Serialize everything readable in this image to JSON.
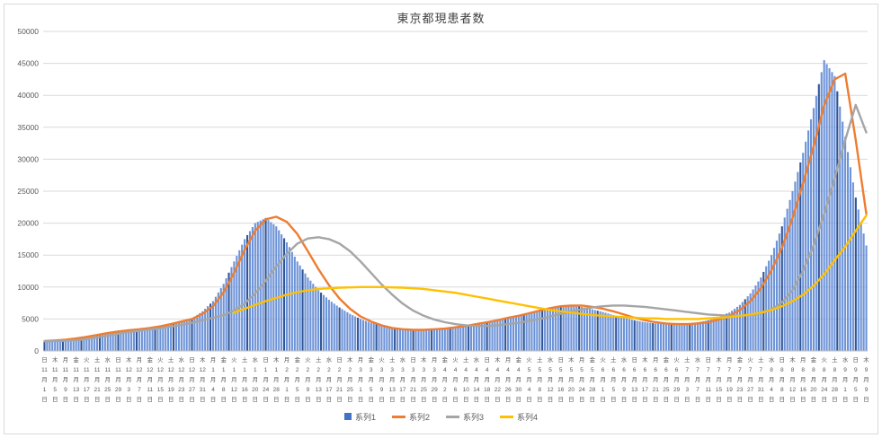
{
  "chart": {
    "title": "東京都現患者数",
    "grid_color": "#d9d9d9",
    "axis_line_color": "#bfbfbf",
    "axis_text_color": "#595959",
    "title_color": "#404040",
    "y_ticks": [
      0,
      5000,
      10000,
      15000,
      20000,
      25000,
      30000,
      35000,
      40000,
      45000,
      50000
    ]
  },
  "legend": {
    "items": [
      {
        "label": "系列1",
        "color": "#4472c4",
        "marker": "square"
      },
      {
        "label": "系列2",
        "color": "#ed7d31",
        "marker": "line"
      },
      {
        "label": "系列3",
        "color": "#a5a5a5",
        "marker": "line"
      },
      {
        "label": "系列4",
        "color": "#ffc000",
        "marker": "line"
      }
    ]
  },
  "chart_data": {
    "type": "bar",
    "combo": "daily bars (系列1) with three smoothed line series (系列2, 系列3, 系列4)",
    "title": "東京都現患者数",
    "ylim": [
      0,
      50000
    ],
    "y_step": 5000,
    "grid": true,
    "legend_position": "bottom",
    "x_note": "category axis labeled every 4 days from 11月1日(日) to 9月9日(木); bars are daily values interpolated between the 4-day anchors below",
    "y_ticks": [
      0,
      5000,
      10000,
      15000,
      20000,
      25000,
      30000,
      35000,
      40000,
      45000,
      50000
    ],
    "dow": [
      "日",
      "木",
      "月",
      "金",
      "火",
      "土",
      "水",
      "日",
      "木",
      "月",
      "金",
      "火",
      "土",
      "水",
      "日",
      "木",
      "月",
      "金",
      "火",
      "土",
      "水",
      "日",
      "木",
      "月",
      "金",
      "火",
      "土",
      "水",
      "日",
      "木",
      "月",
      "金",
      "火",
      "土",
      "水",
      "日",
      "木",
      "月",
      "金",
      "火",
      "土",
      "水",
      "日",
      "木",
      "月",
      "金",
      "火",
      "土",
      "水",
      "日",
      "木",
      "月",
      "金",
      "火",
      "土",
      "水",
      "日",
      "木",
      "月",
      "金",
      "火",
      "土",
      "水",
      "日",
      "木",
      "月",
      "金",
      "火",
      "土",
      "水",
      "日",
      "木",
      "月",
      "金",
      "火",
      "土",
      "水",
      "日",
      "木"
    ],
    "categories": [
      "11月1日",
      "11月5日",
      "11月9日",
      "11月13日",
      "11月17日",
      "11月21日",
      "11月25日",
      "11月29日",
      "12月3日",
      "12月7日",
      "12月11日",
      "12月15日",
      "12月19日",
      "12月23日",
      "12月27日",
      "12月31日",
      "1月4日",
      "1月8日",
      "1月12日",
      "1月16日",
      "1月20日",
      "1月24日",
      "1月28日",
      "2月1日",
      "2月5日",
      "2月9日",
      "2月13日",
      "2月17日",
      "2月21日",
      "2月25日",
      "3月1日",
      "3月5日",
      "3月9日",
      "3月13日",
      "3月17日",
      "3月21日",
      "3月25日",
      "3月29日",
      "4月2日",
      "4月6日",
      "4月10日",
      "4月14日",
      "4月18日",
      "4月22日",
      "4月26日",
      "4月30日",
      "5月4日",
      "5月8日",
      "5月12日",
      "5月16日",
      "5月20日",
      "5月24日",
      "5月28日",
      "6月1日",
      "6月5日",
      "6月9日",
      "6月13日",
      "6月17日",
      "6月21日",
      "6月25日",
      "6月29日",
      "7月3日",
      "7月7日",
      "7月11日",
      "7月15日",
      "7月19日",
      "7月23日",
      "7月27日",
      "7月31日",
      "8月4日",
      "8月8日",
      "8月12日",
      "8月16日",
      "8月20日",
      "8月24日",
      "8月28日",
      "9月1日",
      "9月5日",
      "9月9日"
    ],
    "series": [
      {
        "name": "系列1",
        "type": "bar",
        "color": "#4472c4",
        "light_color": "#6d93d8",
        "accent_color": "#2f5597",
        "values": [
          1500,
          1550,
          1650,
          1850,
          2100,
          2500,
          2900,
          3100,
          3250,
          3400,
          3600,
          3900,
          4300,
          4700,
          5100,
          6200,
          7800,
          10500,
          14000,
          17500,
          20000,
          20800,
          19500,
          17000,
          14000,
          11500,
          9500,
          8000,
          6800,
          5800,
          5000,
          4400,
          4000,
          3700,
          3500,
          3400,
          3400,
          3500,
          3600,
          3800,
          4000,
          4200,
          4500,
          4800,
          5100,
          5400,
          5900,
          6400,
          6800,
          7100,
          7100,
          6900,
          6500,
          6100,
          5600,
          5200,
          4800,
          4500,
          4300,
          4200,
          4200,
          4300,
          4500,
          4800,
          5300,
          6000,
          7200,
          9000,
          11500,
          15000,
          19500,
          25000,
          31000,
          38000,
          45500,
          43000,
          33500,
          24000,
          16500
        ]
      },
      {
        "name": "系列2",
        "type": "line",
        "color": "#ed7d31",
        "values": [
          1550,
          1650,
          1750,
          1950,
          2200,
          2500,
          2800,
          3050,
          3250,
          3400,
          3600,
          3850,
          4200,
          4600,
          5000,
          5800,
          7000,
          9200,
          12200,
          15800,
          18800,
          20600,
          21000,
          20200,
          18300,
          15600,
          12800,
          10300,
          8200,
          6600,
          5400,
          4600,
          4000,
          3600,
          3400,
          3300,
          3300,
          3400,
          3500,
          3700,
          3900,
          4200,
          4500,
          4800,
          5200,
          5500,
          5900,
          6300,
          6700,
          7000,
          7100,
          7100,
          6900,
          6600,
          6200,
          5700,
          5200,
          4800,
          4500,
          4300,
          4200,
          4200,
          4300,
          4500,
          4900,
          5500,
          6400,
          7800,
          9800,
          12600,
          16200,
          20800,
          26200,
          32000,
          38500,
          42500,
          43400,
          33000,
          21500
        ]
      },
      {
        "name": "系列3",
        "type": "line",
        "color": "#a5a5a5",
        "values": [
          1500,
          1550,
          1600,
          1700,
          1850,
          2100,
          2400,
          2700,
          2950,
          3150,
          3350,
          3550,
          3800,
          4100,
          4400,
          4800,
          5200,
          5600,
          6300,
          7400,
          9000,
          11000,
          13200,
          15200,
          16800,
          17600,
          17800,
          17500,
          16800,
          15600,
          14000,
          12200,
          10400,
          8800,
          7400,
          6300,
          5500,
          4900,
          4500,
          4200,
          4000,
          3900,
          3900,
          4000,
          4200,
          4400,
          4700,
          5000,
          5400,
          5800,
          6200,
          6500,
          6800,
          7000,
          7100,
          7100,
          7000,
          6900,
          6700,
          6500,
          6300,
          6100,
          5900,
          5700,
          5600,
          5500,
          5500,
          5600,
          5900,
          6500,
          7600,
          9500,
          12500,
          16500,
          21500,
          27000,
          33000,
          38500,
          34200
        ]
      },
      {
        "name": "系列4",
        "type": "line",
        "color": "#ffc000",
        "values": [
          null,
          null,
          null,
          null,
          null,
          null,
          null,
          null,
          null,
          null,
          null,
          null,
          null,
          null,
          null,
          null,
          null,
          null,
          6000,
          6600,
          7200,
          7800,
          8300,
          8800,
          9200,
          9500,
          9700,
          9800,
          9900,
          9950,
          10000,
          10000,
          10000,
          9950,
          9900,
          9800,
          9700,
          9500,
          9300,
          9100,
          8800,
          8500,
          8200,
          7900,
          7600,
          7300,
          7000,
          6700,
          6400,
          6200,
          6000,
          5800,
          5600,
          5500,
          5400,
          5300,
          5200,
          5100,
          5100,
          5000,
          5000,
          5000,
          5000,
          5100,
          5200,
          5300,
          5500,
          5700,
          6000,
          6400,
          7000,
          7800,
          8800,
          10200,
          12000,
          14200,
          16300,
          18800,
          21200
        ]
      }
    ]
  }
}
